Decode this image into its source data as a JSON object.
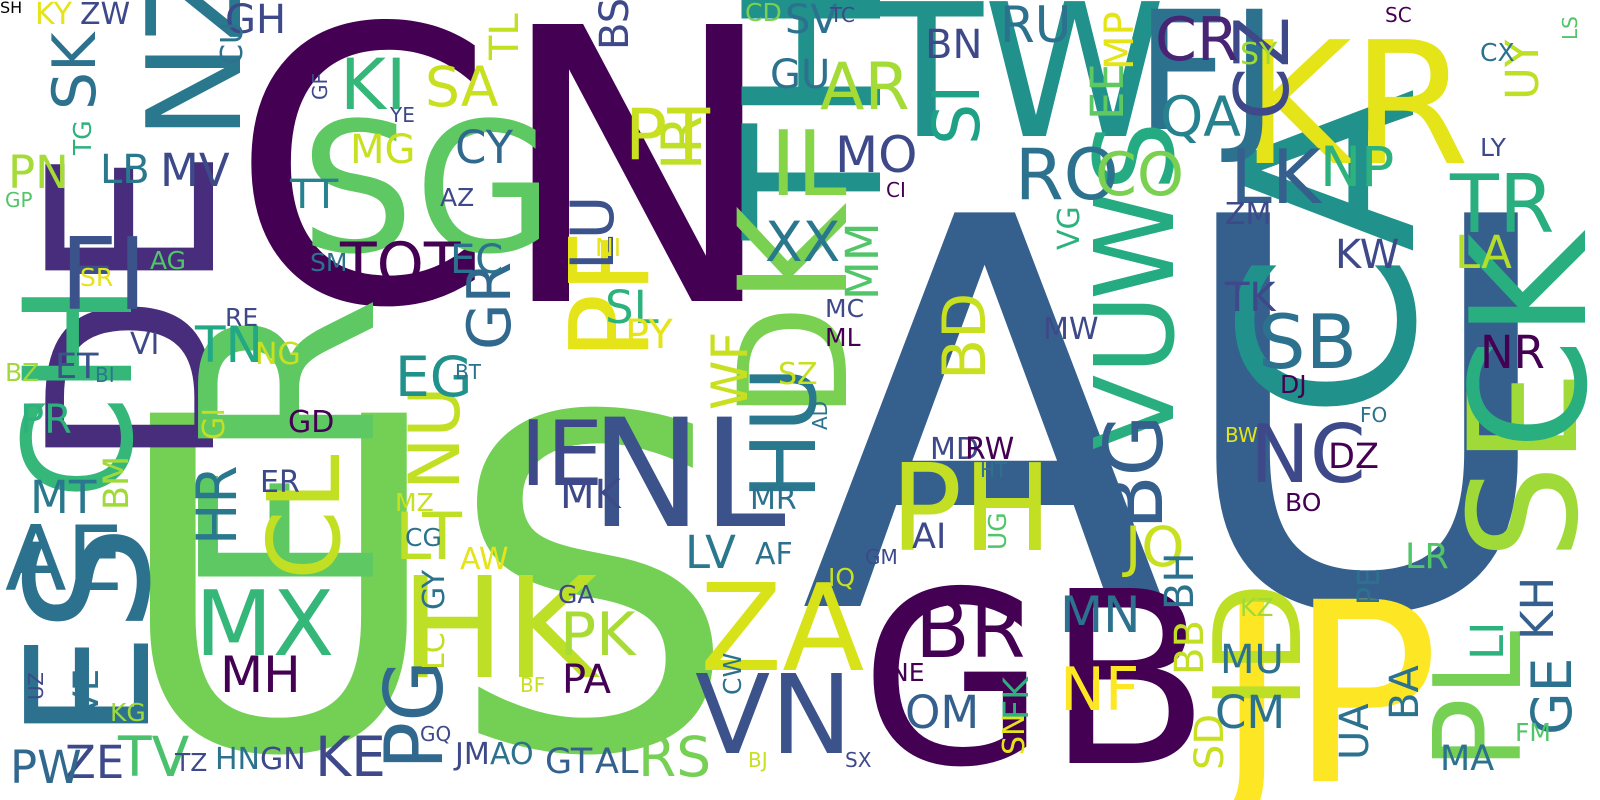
{
  "words": [
    {
      "text": "AU",
      "color": "#35608d"
    },
    {
      "text": "US",
      "color": "#73d055"
    },
    {
      "text": "CN",
      "color": "#440154"
    },
    {
      "text": "GB",
      "color": "#440154"
    },
    {
      "text": "JP",
      "color": "#fde725"
    },
    {
      "text": "DE",
      "color": "#472d7b"
    },
    {
      "text": "CA",
      "color": "#21918c"
    },
    {
      "text": "SG",
      "color": "#5ec962"
    },
    {
      "text": "TH",
      "color": "#21918c"
    },
    {
      "text": "TW",
      "color": "#21918c"
    },
    {
      "text": "KR",
      "color": "#e5e419"
    },
    {
      "text": "FJ",
      "color": "#2c728e"
    },
    {
      "text": "FR",
      "color": "#5ec962"
    },
    {
      "text": "NL",
      "color": "#3b528b"
    },
    {
      "text": "HK",
      "color": "#bddf26"
    },
    {
      "text": "ZA",
      "color": "#d8e219"
    },
    {
      "text": "VN",
      "color": "#3b528b"
    },
    {
      "text": "CH",
      "color": "#35b779"
    },
    {
      "text": "ES",
      "color": "#2c728e"
    },
    {
      "text": "SE",
      "color": "#a0da39"
    },
    {
      "text": "CK",
      "color": "#29af7f"
    },
    {
      "text": "DK",
      "color": "#7ad151"
    },
    {
      "text": "PH",
      "color": "#c2df23"
    },
    {
      "text": "ID",
      "color": "#bddf26"
    },
    {
      "text": "PL",
      "color": "#75d054"
    },
    {
      "text": "IE",
      "color": "#3e4989"
    },
    {
      "text": "NZ",
      "color": "#2a788e"
    },
    {
      "text": "FI",
      "color": "#3b528b"
    },
    {
      "text": "AE",
      "color": "#2c728e"
    },
    {
      "text": "VU",
      "color": "#29af7f"
    },
    {
      "text": "WS",
      "color": "#25ab82"
    },
    {
      "text": "SB",
      "color": "#2c728e"
    },
    {
      "text": "HU",
      "color": "#2a788e"
    },
    {
      "text": "BG",
      "color": "#35608d"
    },
    {
      "text": "MX",
      "color": "#35b779"
    },
    {
      "text": "CL",
      "color": "#c2df23"
    },
    {
      "text": "NC",
      "color": "#3e4989"
    },
    {
      "text": "TR",
      "color": "#29af7f"
    },
    {
      "text": "SK",
      "color": "#2c728e"
    },
    {
      "text": "KI",
      "color": "#35b779"
    },
    {
      "text": "IL",
      "color": "#86d549"
    },
    {
      "text": "TOT",
      "color": "#440154"
    },
    {
      "text": "BR",
      "color": "#440154"
    },
    {
      "text": "PG",
      "color": "#31688e"
    },
    {
      "text": "PF",
      "color": "#e5e419"
    },
    {
      "text": "NU",
      "color": "#c2df23"
    },
    {
      "text": "GR",
      "color": "#31688e"
    },
    {
      "text": "RO",
      "color": "#2c728e"
    },
    {
      "text": "CO",
      "color": "#7ad151"
    },
    {
      "text": "LK",
      "color": "#35608d"
    },
    {
      "text": "NP",
      "color": "#2db27d"
    },
    {
      "text": "CZ",
      "color": "#3e4989"
    },
    {
      "text": "AR",
      "color": "#a5db36"
    },
    {
      "text": "SA",
      "color": "#c8e020"
    },
    {
      "text": "IR",
      "color": "#bddf26"
    },
    {
      "text": "PT",
      "color": "#c8e020"
    },
    {
      "text": "XX",
      "color": "#2a788e"
    },
    {
      "text": "PK",
      "color": "#a8db34"
    },
    {
      "text": "MN",
      "color": "#2c728e"
    },
    {
      "text": "BD",
      "color": "#c8e020"
    },
    {
      "text": "NF",
      "color": "#fde725"
    },
    {
      "text": "SI",
      "color": "#1fa187"
    },
    {
      "text": "CR",
      "color": "#482475"
    },
    {
      "text": "QA",
      "color": "#26828e"
    },
    {
      "text": "EG",
      "color": "#21918c"
    },
    {
      "text": "HR",
      "color": "#2a788e"
    },
    {
      "text": "MH",
      "color": "#440154"
    },
    {
      "text": "JO",
      "color": "#c8e020"
    },
    {
      "text": "LV",
      "color": "#2a788e"
    },
    {
      "text": "LT",
      "color": "#bddf26"
    },
    {
      "text": "TN",
      "color": "#22a884"
    },
    {
      "text": "LU",
      "color": "#3b528b"
    },
    {
      "text": "MO",
      "color": "#3e4989"
    },
    {
      "text": "MM",
      "color": "#52c569"
    },
    {
      "text": "EE",
      "color": "#5ec962"
    },
    {
      "text": "UY",
      "color": "#bddf26"
    },
    {
      "text": "LA",
      "color": "#b5de2b"
    },
    {
      "text": "PN",
      "color": "#a5db36"
    },
    {
      "text": "LB",
      "color": "#2a788e"
    },
    {
      "text": "MV",
      "color": "#3e4989"
    },
    {
      "text": "CY",
      "color": "#31688e"
    },
    {
      "text": "TT",
      "color": "#26828e"
    },
    {
      "text": "MG",
      "color": "#c8e020"
    },
    {
      "text": "EC",
      "color": "#2c728e"
    },
    {
      "text": "SL",
      "color": "#2db27d"
    },
    {
      "text": "PY",
      "color": "#e5e419"
    },
    {
      "text": "WF",
      "color": "#c8e020"
    },
    {
      "text": "RS",
      "color": "#75d054"
    },
    {
      "text": "TV",
      "color": "#4ac16d"
    },
    {
      "text": "KE",
      "color": "#3e4989"
    },
    {
      "text": "ZE",
      "color": "#3e4989"
    },
    {
      "text": "PW",
      "color": "#31688e"
    },
    {
      "text": "VE",
      "color": "#2c728e"
    },
    {
      "text": "PR",
      "color": "#2db27d"
    },
    {
      "text": "MT",
      "color": "#2a788e"
    },
    {
      "text": "BM",
      "color": "#a0da39"
    },
    {
      "text": "ET",
      "color": "#3b528b"
    },
    {
      "text": "MK",
      "color": "#3e4989"
    },
    {
      "text": "NR",
      "color": "#440154"
    },
    {
      "text": "KW",
      "color": "#3e4989"
    },
    {
      "text": "TK",
      "color": "#3e4989"
    },
    {
      "text": "ZM",
      "color": "#3e4989"
    },
    {
      "text": "SY",
      "color": "#a0da39"
    },
    {
      "text": "GH",
      "color": "#3e4989"
    },
    {
      "text": "BN",
      "color": "#3e4989"
    },
    {
      "text": "RU",
      "color": "#2c728e"
    },
    {
      "text": "GU",
      "color": "#2c728e"
    },
    {
      "text": "SV",
      "color": "#2c728e"
    },
    {
      "text": "CD",
      "color": "#7ad151"
    },
    {
      "text": "TC",
      "color": "#3e4989"
    },
    {
      "text": "BS",
      "color": "#3e4989"
    },
    {
      "text": "TL",
      "color": "#c2df23"
    },
    {
      "text": "MP",
      "color": "#e5e419"
    },
    {
      "text": "KY",
      "color": "#e5e419"
    },
    {
      "text": "ZW",
      "color": "#3e4989"
    },
    {
      "text": "CU",
      "color": "#2c728e"
    },
    {
      "text": "GF",
      "color": "#3e4989"
    },
    {
      "text": "YE",
      "color": "#3e4989"
    },
    {
      "text": "TG",
      "color": "#2db27d"
    },
    {
      "text": "GP",
      "color": "#52c569"
    },
    {
      "text": "AZ",
      "color": "#3e4989"
    },
    {
      "text": "SR",
      "color": "#e5e419"
    },
    {
      "text": "AG",
      "color": "#52c569"
    },
    {
      "text": "SM",
      "color": "#2c728e"
    },
    {
      "text": "RE",
      "color": "#3e4989"
    },
    {
      "text": "VI",
      "color": "#3e4989"
    },
    {
      "text": "NG",
      "color": "#c8e020"
    },
    {
      "text": "BZ",
      "color": "#a0da39"
    },
    {
      "text": "BI",
      "color": "#2a788e"
    },
    {
      "text": "BT",
      "color": "#2c728e"
    },
    {
      "text": "GI",
      "color": "#c2df23"
    },
    {
      "text": "GD",
      "color": "#440154"
    },
    {
      "text": "ER",
      "color": "#3e4989"
    },
    {
      "text": "MZ",
      "color": "#c8e020"
    },
    {
      "text": "CG",
      "color": "#2c728e"
    },
    {
      "text": "AW",
      "color": "#e5e419"
    },
    {
      "text": "GY",
      "color": "#2c728e"
    },
    {
      "text": "LC",
      "color": "#c2df23"
    },
    {
      "text": "GA",
      "color": "#3e4989"
    },
    {
      "text": "PA",
      "color": "#440154"
    },
    {
      "text": "BF",
      "color": "#c8e020"
    },
    {
      "text": "UZ",
      "color": "#3e4989"
    },
    {
      "text": "KG",
      "color": "#a0da39"
    },
    {
      "text": "TZ",
      "color": "#3e4989"
    },
    {
      "text": "HN",
      "color": "#2c728e"
    },
    {
      "text": "GN",
      "color": "#3e4989"
    },
    {
      "text": "GQ",
      "color": "#3e4989"
    },
    {
      "text": "JM",
      "color": "#3e4989"
    },
    {
      "text": "AO",
      "color": "#2c728e"
    },
    {
      "text": "GT",
      "color": "#35608d"
    },
    {
      "text": "AL",
      "color": "#35608d"
    },
    {
      "text": "CW",
      "color": "#2c728e"
    },
    {
      "text": "BJ",
      "color": "#c8e020"
    },
    {
      "text": "SX",
      "color": "#3e4989"
    },
    {
      "text": "GM",
      "color": "#3e4989"
    },
    {
      "text": "NE",
      "color": "#440154"
    },
    {
      "text": "OM",
      "color": "#35608d"
    },
    {
      "text": "SN",
      "color": "#e5e419"
    },
    {
      "text": "FK",
      "color": "#2db27d"
    },
    {
      "text": "UG",
      "color": "#52c569"
    },
    {
      "text": "AI",
      "color": "#3e4989"
    },
    {
      "text": "MD",
      "color": "#3e4989"
    },
    {
      "text": "RW",
      "color": "#440154"
    },
    {
      "text": "HT",
      "color": "#2c728e"
    },
    {
      "text": "MR",
      "color": "#2c728e"
    },
    {
      "text": "AF",
      "color": "#2c728e"
    },
    {
      "text": "IQ",
      "color": "#c8e020"
    },
    {
      "text": "SZ",
      "color": "#c8e020"
    },
    {
      "text": "AD",
      "color": "#2c728e"
    },
    {
      "text": "SD",
      "color": "#c8e020"
    },
    {
      "text": "BH",
      "color": "#2c728e"
    },
    {
      "text": "BB",
      "color": "#c2df23"
    },
    {
      "text": "CM",
      "color": "#2c728e"
    },
    {
      "text": "MU",
      "color": "#2c728e"
    },
    {
      "text": "BA",
      "color": "#2c728e"
    },
    {
      "text": "UA",
      "color": "#2c728e"
    },
    {
      "text": "PE",
      "color": "#2c728e"
    },
    {
      "text": "KZ",
      "color": "#a0da39"
    },
    {
      "text": "LR",
      "color": "#52c569"
    },
    {
      "text": "LI",
      "color": "#2db27d"
    },
    {
      "text": "GE",
      "color": "#2c728e"
    },
    {
      "text": "KH",
      "color": "#35608d"
    },
    {
      "text": "MA",
      "color": "#2c728e"
    },
    {
      "text": "FM",
      "color": "#52c569"
    },
    {
      "text": "BO",
      "color": "#440154"
    },
    {
      "text": "BW",
      "color": "#e5e419"
    },
    {
      "text": "FO",
      "color": "#2c728e"
    },
    {
      "text": "DJ",
      "color": "#440154"
    },
    {
      "text": "DZ",
      "color": "#440154"
    },
    {
      "text": "MC",
      "color": "#3e4989"
    },
    {
      "text": "ML",
      "color": "#440154"
    },
    {
      "text": "MW",
      "color": "#3e4989"
    },
    {
      "text": "VG",
      "color": "#2db27d"
    },
    {
      "text": "NI",
      "color": "#e5e419"
    },
    {
      "text": "CI",
      "color": "#440154"
    },
    {
      "text": "CX",
      "color": "#2c728e"
    },
    {
      "text": "LY",
      "color": "#3e4989"
    },
    {
      "text": "SC",
      "color": "#440154"
    },
    {
      "text": "LS",
      "color": "#52c569"
    },
    {
      "text": "SH",
      "color": "#2db27d"
    }
  ]
}
